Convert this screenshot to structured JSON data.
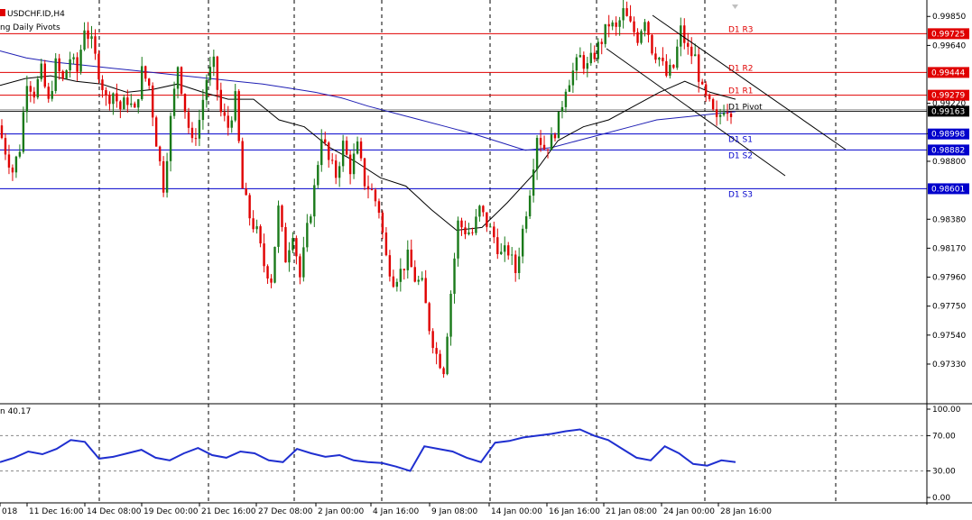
{
  "header": {
    "symbol_line": "USDCHF.ID,H4",
    "indicator_line": "ng Daily Pivots",
    "rsi_line": "n 40.17"
  },
  "colors": {
    "bull_candle": "#1a7a1a",
    "bear_candle": "#e00000",
    "resistance_line": "#e00000",
    "support_line": "#0000cc",
    "pivot_line": "#000000",
    "ma_slow": "#1f1fb4",
    "ma_fast": "#000000",
    "rsi_line": "#1f2fd0",
    "channel": "#000000",
    "grid": "#000000"
  },
  "price_axis": {
    "ticks": [
      0.9985,
      0.9964,
      0.9922,
      0.99,
      0.988,
      0.9838,
      0.9817,
      0.9796,
      0.9775,
      0.9754,
      0.9733
    ],
    "tick_labels": [
      "0.99850",
      "0.99640",
      "0.99220",
      "0.99000",
      "0.98800",
      "0.98380",
      "0.98170",
      "0.97960",
      "0.97750",
      "0.97540",
      "0.97330"
    ],
    "min": 0.9716,
    "max": 0.9993
  },
  "rsi_axis": {
    "ticks": [
      100,
      70,
      30,
      0
    ],
    "tick_labels": [
      "100.00",
      "70.00",
      "30.00",
      "0.00"
    ]
  },
  "time_axis": {
    "labels": [
      "018",
      "11 Dec 16:00",
      "14 Dec 08:00",
      "19 Dec 00:00",
      "21 Dec 16:00",
      "27 Dec 08:00",
      "2 Jan 00:00",
      "4 Jan 16:00",
      "9 Jan 08:00",
      "14 Jan 00:00",
      "16 Jan 16:00",
      "21 Jan 08:00",
      "24 Jan 00:00",
      "28 Jan 16:00"
    ]
  },
  "pivots": [
    {
      "name": "D1 R3",
      "value": 0.99725,
      "tag": "0.99725",
      "kind": "res"
    },
    {
      "name": "D1 R2",
      "value": 0.99444,
      "tag": "0.99444",
      "kind": "res"
    },
    {
      "name": "D1 R1",
      "value": 0.99279,
      "tag": "0.99279",
      "kind": "res"
    },
    {
      "name": "D1 Pivot",
      "value": 0.99163,
      "tag": "0.99163",
      "kind": "pivot"
    },
    {
      "name": "D1 S1",
      "value": 0.98998,
      "tag": "0.98998",
      "kind": "sup"
    },
    {
      "name": "D1 S2",
      "value": 0.98882,
      "tag": "0.98882",
      "kind": "sup"
    },
    {
      "name": "D1 S3",
      "value": 0.98601,
      "tag": "0.98601",
      "kind": "sup"
    }
  ],
  "chart_data": {
    "type": "candlestick",
    "symbol": "USDCHF.ID",
    "timeframe": "H4",
    "ohlc_path": [
      0.9906,
      0.9888,
      0.9873,
      0.989,
      0.994,
      0.993,
      0.9945,
      0.9922,
      0.995,
      0.9938,
      0.9955,
      0.9945,
      0.9978,
      0.9965,
      0.9945,
      0.9925,
      0.993,
      0.9918,
      0.9925,
      0.9915,
      0.9945,
      0.9935,
      0.9895,
      0.9862,
      0.991,
      0.995,
      0.9918,
      0.9892,
      0.991,
      0.994,
      0.995,
      0.9915,
      0.9905,
      0.9925,
      0.986,
      0.984,
      0.9828,
      0.9805,
      0.9795,
      0.9845,
      0.981,
      0.983,
      0.9796,
      0.983,
      0.986,
      0.99,
      0.988,
      0.987,
      0.9892,
      0.9875,
      0.989,
      0.9865,
      0.9858,
      0.9845,
      0.981,
      0.9795,
      0.98,
      0.981,
      0.9795,
      0.979,
      0.976,
      0.974,
      0.973,
      0.9785,
      0.9835,
      0.983,
      0.9828,
      0.9845,
      0.9835,
      0.9825,
      0.9812,
      0.9815,
      0.98,
      0.983,
      0.986,
      0.99,
      0.989,
      0.9895,
      0.991,
      0.9935,
      0.9945,
      0.9955,
      0.9948,
      0.9958,
      0.9968,
      0.998,
      0.9975,
      0.9988,
      0.9978,
      0.997,
      0.9985,
      0.9962,
      0.9955,
      0.9942,
      0.9948,
      0.9975,
      0.996,
      0.9955,
      0.993,
      0.992,
      0.9908,
      0.992,
      0.9918
    ],
    "ma_slow": [
      0.996,
      0.9955,
      0.9952,
      0.995,
      0.9948,
      0.9946,
      0.9944,
      0.9942,
      0.994,
      0.9938,
      0.9936,
      0.9933,
      0.993,
      0.9926,
      0.992,
      0.9915,
      0.991,
      0.9905,
      0.99,
      0.9894,
      0.9888,
      0.989,
      0.9895,
      0.99,
      0.9905,
      0.991,
      0.9912,
      0.9914,
      0.9916
    ],
    "ma_fast": [
      0.9935,
      0.994,
      0.9942,
      0.9938,
      0.9936,
      0.993,
      0.9932,
      0.9936,
      0.993,
      0.9925,
      0.9925,
      0.991,
      0.9905,
      0.989,
      0.988,
      0.9868,
      0.9862,
      0.9845,
      0.983,
      0.9832,
      0.985,
      0.987,
      0.9895,
      0.9905,
      0.991,
      0.992,
      0.993,
      0.9938,
      0.993,
      0.9925
    ],
    "rsi": [
      40,
      45,
      52,
      49,
      55,
      65,
      63,
      44,
      46,
      50,
      54,
      45,
      42,
      50,
      56,
      48,
      45,
      52,
      50,
      42,
      40,
      55,
      50,
      46,
      48,
      42,
      40,
      39,
      35,
      30,
      58,
      55,
      52,
      45,
      40,
      62,
      64,
      68,
      70,
      72,
      75,
      77,
      70,
      65,
      55,
      45,
      42,
      58,
      50,
      38,
      36,
      42,
      40
    ],
    "rsi_last": 40.17,
    "rsi_levels": [
      70,
      30
    ]
  }
}
